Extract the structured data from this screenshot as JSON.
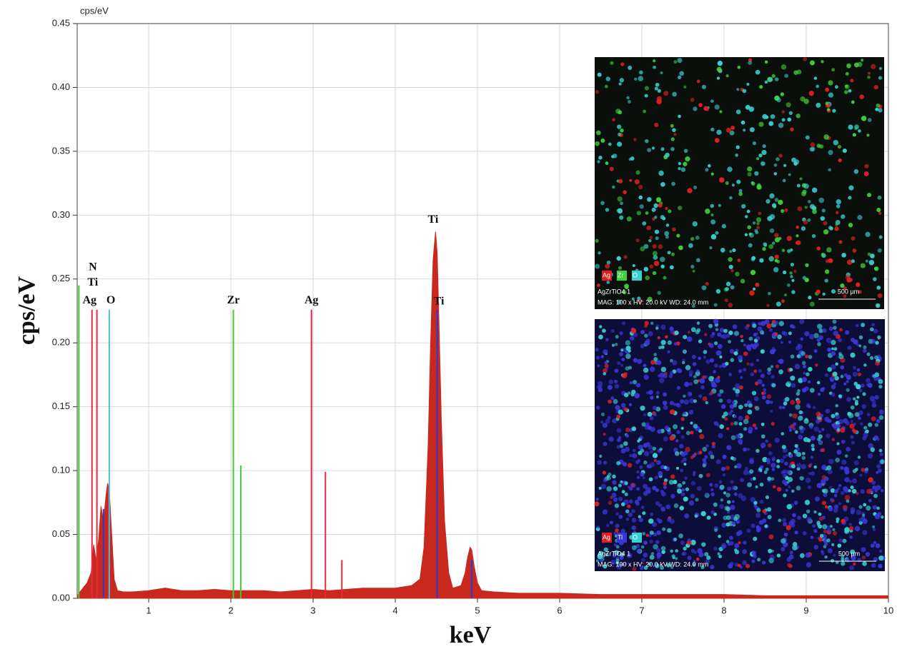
{
  "chart_data": {
    "type": "area",
    "unit_label": "cps/eV",
    "y_label": "cps/eV",
    "x_label": "keV",
    "color": "#c8281e",
    "xlim": [
      0.13,
      10
    ],
    "ylim": [
      0,
      0.45
    ],
    "xticks": [
      1,
      2,
      3,
      4,
      5,
      6,
      7,
      8,
      9,
      10
    ],
    "yticks": [
      {
        "value": 0,
        "label": "0.00"
      },
      {
        "value": 0.05,
        "label": "0.05"
      },
      {
        "value": 0.1,
        "label": "0.10"
      },
      {
        "value": 0.15,
        "label": "0.15"
      },
      {
        "value": 0.2,
        "label": "0.20"
      },
      {
        "value": 0.25,
        "label": "0.25"
      },
      {
        "value": 0.3,
        "label": "0.30"
      },
      {
        "value": 0.35,
        "label": "0.35"
      },
      {
        "value": 0.4,
        "label": "0.40"
      },
      {
        "value": 0.45,
        "label": "0.45"
      }
    ],
    "grid": true,
    "x": [
      0.13,
      0.2,
      0.25,
      0.3,
      0.33,
      0.36,
      0.39,
      0.42,
      0.45,
      0.48,
      0.5,
      0.52,
      0.55,
      0.58,
      0.62,
      0.7,
      0.8,
      1.0,
      1.2,
      1.4,
      1.6,
      1.8,
      2.0,
      2.2,
      2.4,
      2.6,
      2.8,
      3.0,
      3.2,
      3.4,
      3.6,
      3.8,
      4.0,
      4.2,
      4.3,
      4.35,
      4.4,
      4.43,
      4.46,
      4.49,
      4.51,
      4.53,
      4.56,
      4.6,
      4.65,
      4.7,
      4.8,
      4.85,
      4.88,
      4.91,
      4.93,
      4.96,
      5.0,
      5.05,
      5.2,
      5.5,
      6.0,
      6.5,
      7.0,
      7.5,
      8.0,
      8.5,
      9.0,
      9.5,
      10
    ],
    "values": [
      0.002,
      0.008,
      0.012,
      0.02,
      0.042,
      0.03,
      0.045,
      0.072,
      0.06,
      0.08,
      0.09,
      0.085,
      0.05,
      0.015,
      0.006,
      0.005,
      0.005,
      0.006,
      0.008,
      0.006,
      0.006,
      0.007,
      0.006,
      0.006,
      0.006,
      0.005,
      0.006,
      0.007,
      0.006,
      0.007,
      0.008,
      0.008,
      0.008,
      0.01,
      0.015,
      0.04,
      0.12,
      0.2,
      0.265,
      0.287,
      0.27,
      0.22,
      0.14,
      0.06,
      0.02,
      0.008,
      0.01,
      0.02,
      0.032,
      0.04,
      0.038,
      0.025,
      0.012,
      0.006,
      0.005,
      0.004,
      0.004,
      0.003,
      0.003,
      0.003,
      0.003,
      0.002,
      0.002,
      0.002,
      0.002
    ],
    "element_lines": [
      {
        "color": "#e8283c",
        "x": [
          0.31,
          0.37,
          2.98,
          3.15,
          3.35
        ],
        "values": [
          0.226,
          0.226,
          0.226,
          0.099,
          0.03
        ]
      },
      {
        "color": "#3ecb2e",
        "x": [
          0.15,
          2.03,
          2.12
        ],
        "values": [
          0.245,
          0.226,
          0.104
        ]
      },
      {
        "color": "#4fb9e0",
        "x": [
          0.52
        ],
        "values": [
          0.226
        ]
      },
      {
        "color": "#2a3cd8",
        "x": [
          4.51,
          4.93,
          0.45
        ],
        "values": [
          0.226,
          0.03,
          0.07
        ]
      }
    ],
    "annotations": [
      {
        "text": "N",
        "x": 0.32,
        "y": 0.259
      },
      {
        "text": "Ti",
        "x": 0.32,
        "y": 0.247
      },
      {
        "text": "Ag",
        "x": 0.28,
        "y": 0.233
      },
      {
        "text": "O",
        "x": 0.54,
        "y": 0.233
      },
      {
        "text": "Zr",
        "x": 2.03,
        "y": 0.233
      },
      {
        "text": "Ag",
        "x": 2.98,
        "y": 0.233
      },
      {
        "text": "Ti",
        "x": 4.46,
        "y": 0.296
      },
      {
        "text": "Ti",
        "x": 4.53,
        "y": 0.232
      }
    ],
    "insets": [
      {
        "legend": [
          "Ag",
          "Zr",
          "O"
        ],
        "legend_colors": [
          "#e02020",
          "#3ed23a",
          "#38d0d0"
        ],
        "sample": "AgZrTiO4 1",
        "info": "MAG: 100 x   HV: 20.0 kV   WD: 24.0 mm",
        "scale": "500 µm"
      },
      {
        "legend": [
          "Ag",
          "Ti",
          "O"
        ],
        "legend_colors": [
          "#e02020",
          "#3a36d8",
          "#38d0d0"
        ],
        "sample": "AgZrTiO4 1",
        "info": "MAG: 100 x   HV: 20.0 kV   WD: 24.0 mm",
        "scale": "500 µm"
      }
    ]
  }
}
